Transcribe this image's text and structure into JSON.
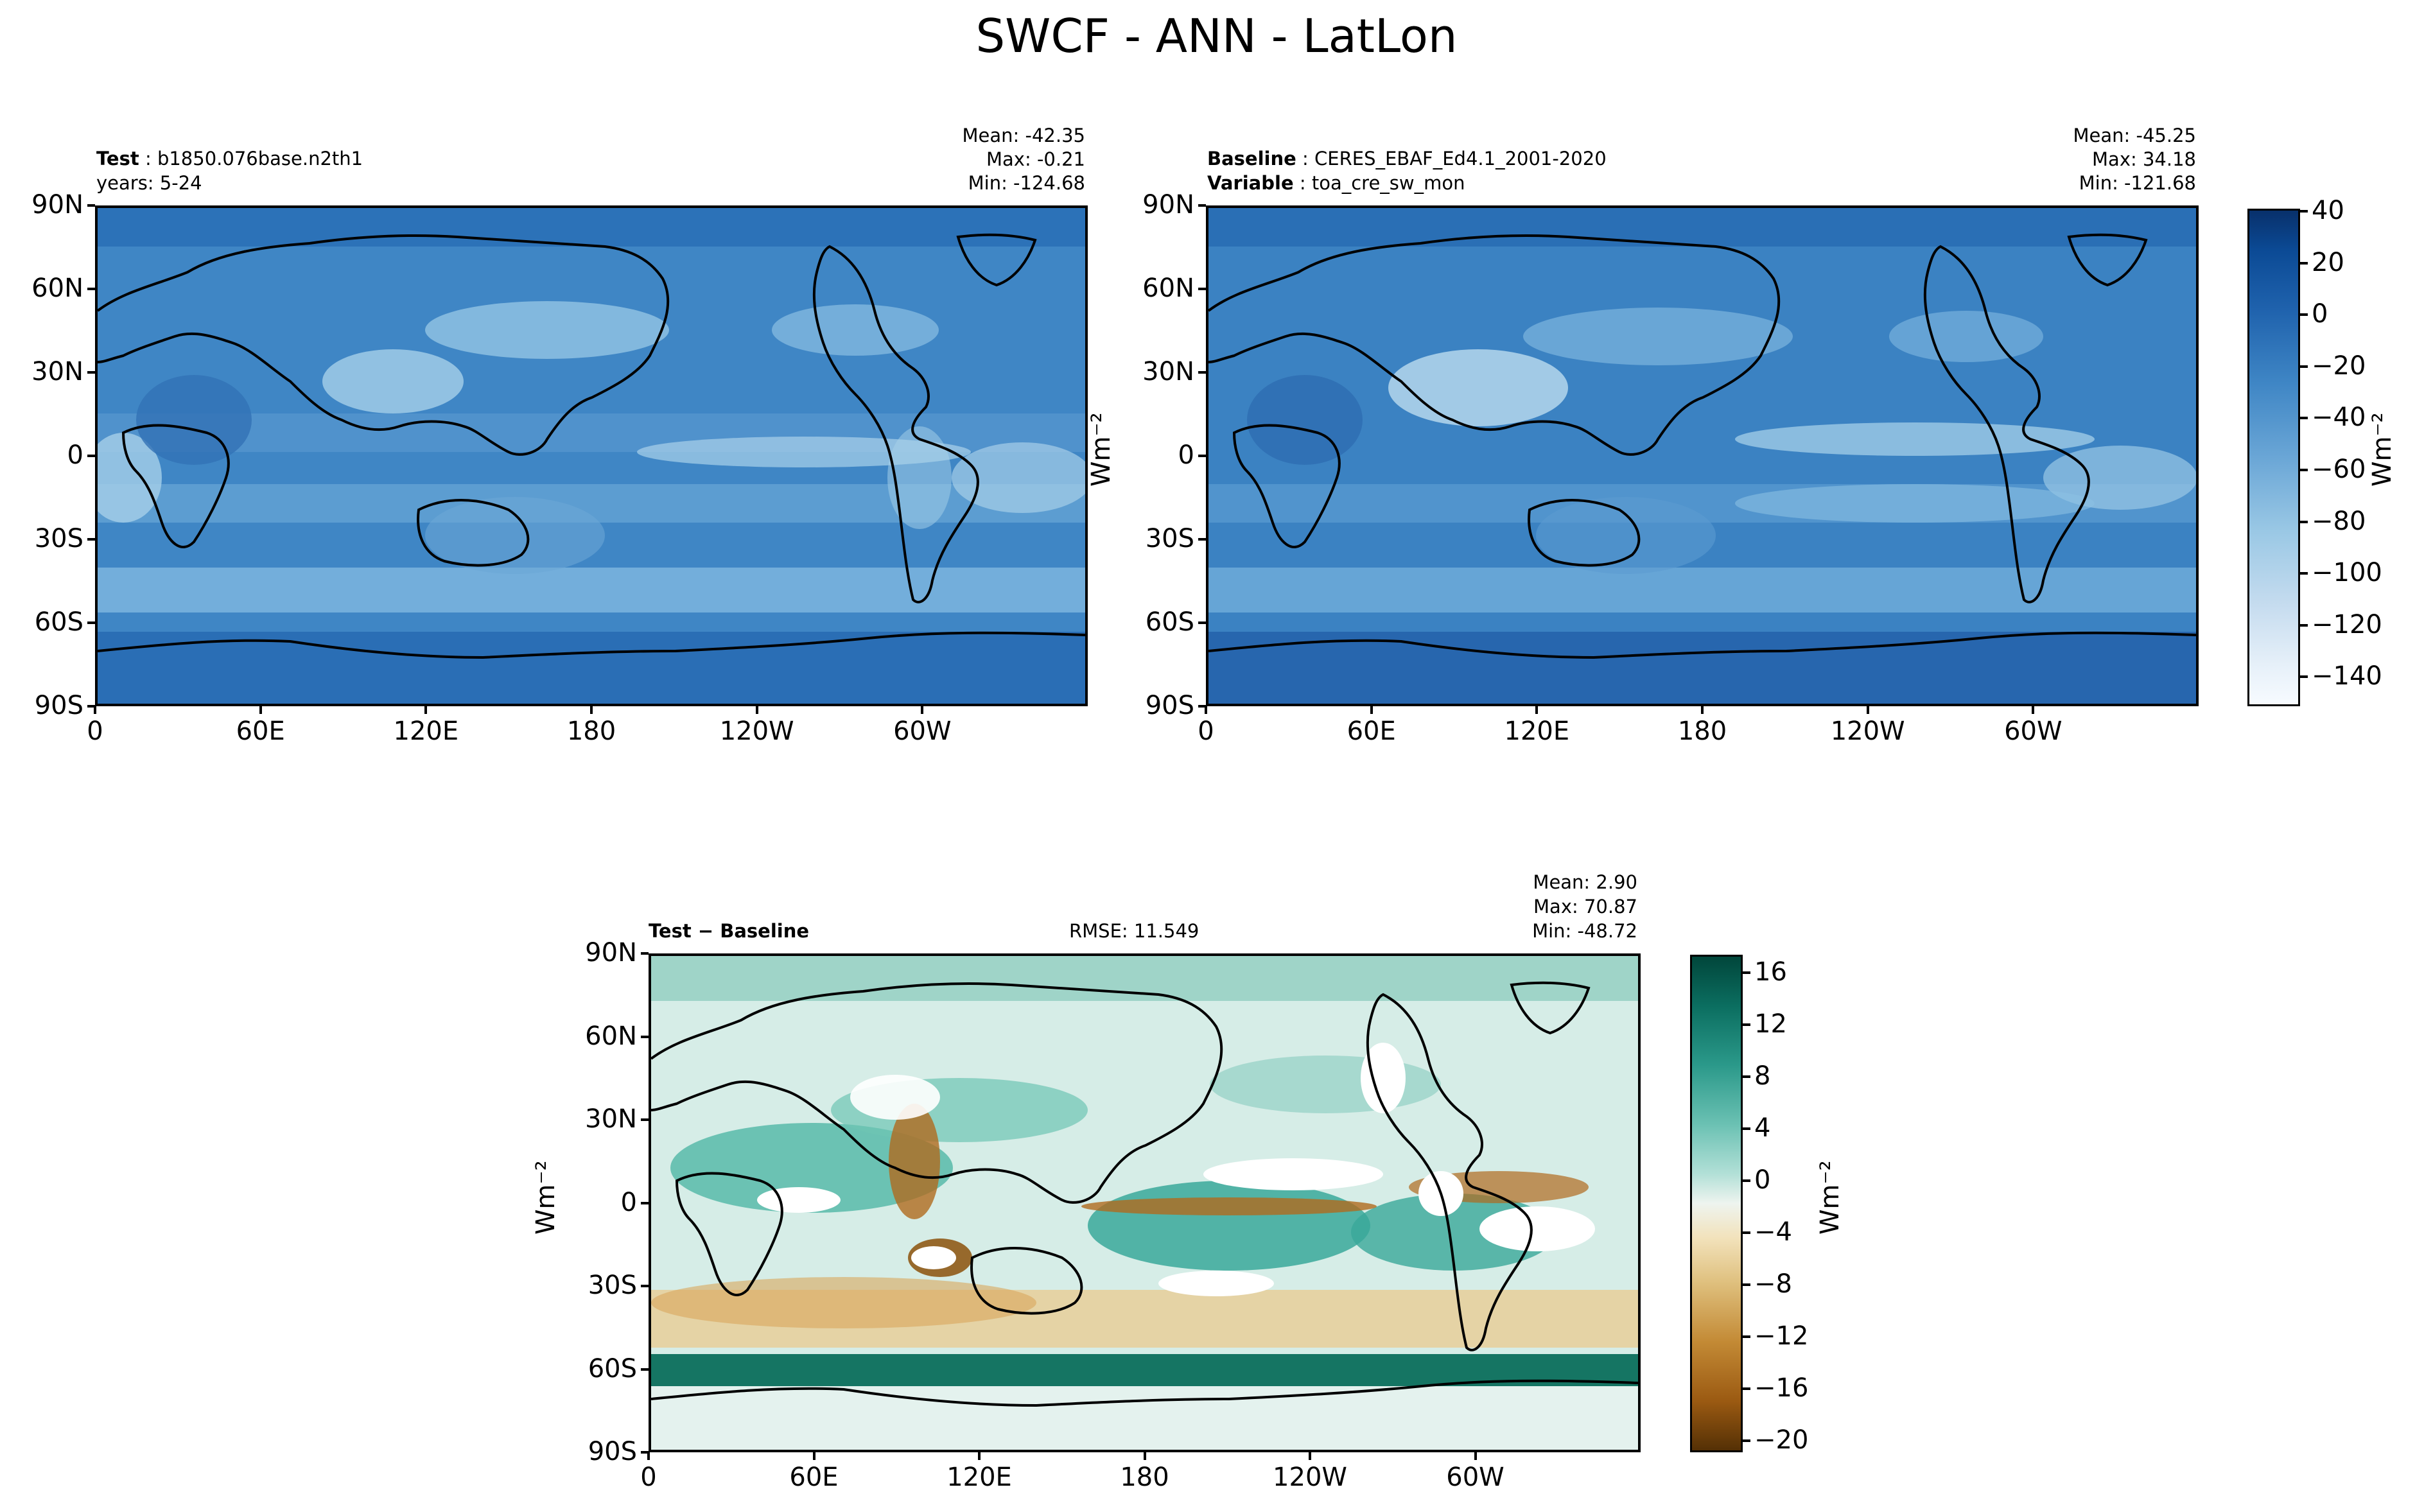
{
  "title": "SWCF - ANN - LatLon",
  "test_panel": {
    "label_bold": "Test",
    "label_value": "b1850.076base.n2th1",
    "years": "years: 5-24",
    "mean": "Mean: -42.35",
    "max": "Max: -0.21",
    "min": "Min: -124.68"
  },
  "baseline_panel": {
    "label_bold": "Baseline",
    "label_value": "CERES_EBAF_Ed4.1_2001-2020",
    "variable_bold": "Variable",
    "variable_value": "toa_cre_sw_mon",
    "mean": "Mean: -45.25",
    "max": "Max: 34.18",
    "min": "Min: -121.68"
  },
  "diff_panel": {
    "label": "Test − Baseline",
    "rmse": "RMSE: 11.549",
    "mean": "Mean:  2.90",
    "max": "Max: 70.87",
    "min": "Min: -48.72"
  },
  "axes": {
    "lat_ticks": [
      "90N",
      "60N",
      "30N",
      "0",
      "30S",
      "60S",
      "90S"
    ],
    "lon_ticks": [
      "0",
      "60E",
      "120E",
      "180",
      "120W",
      "60W"
    ]
  },
  "units": "Wm⁻²",
  "colorbar_top": {
    "ticks": [
      "40",
      "20",
      "0",
      "−20",
      "−40",
      "−60",
      "−80",
      "−100",
      "−120",
      "−140"
    ],
    "range": [
      -150,
      40
    ],
    "colormap": "Blues_r"
  },
  "colorbar_diff": {
    "ticks": [
      "16",
      "12",
      "8",
      "4",
      "0",
      "−4",
      "−8",
      "−12",
      "−16",
      "−20"
    ],
    "range": [
      -20,
      18
    ],
    "colormap": "BrBG"
  },
  "colors": {
    "ocean_top": "#4a90cc",
    "dark_blue": "#1f62ad",
    "light_blue": "#9ac8e5",
    "diff_teal": "#3aa89a",
    "diff_brown": "#b06a1e",
    "diff_neutral": "#eef4ef"
  }
}
